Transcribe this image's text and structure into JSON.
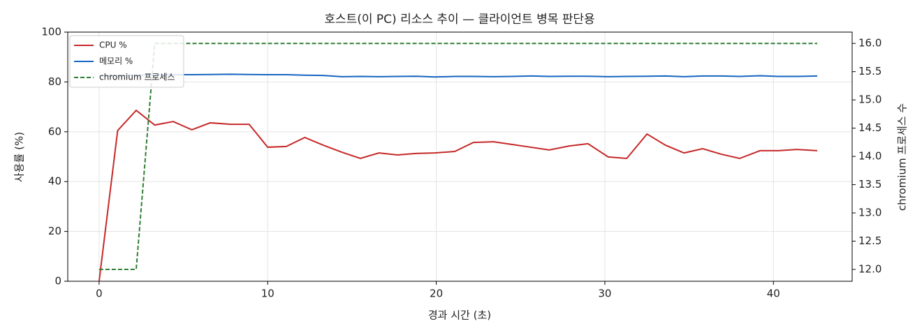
{
  "chart_data": {
    "type": "line",
    "title": "호스트(이 PC) 리소스 추이 — 클라이언트 병목 판단용",
    "xlabel": "경과 시간 (초)",
    "ylabel": "사용률 (%)",
    "y2label": "chromium 프로세스 수",
    "x": [
      0,
      1.1,
      2.2,
      3.3,
      4.4,
      5.5,
      6.6,
      7.8,
      8.9,
      10.0,
      11.1,
      12.2,
      13.3,
      14.4,
      15.5,
      16.6,
      17.7,
      18.8,
      19.9,
      21.1,
      22.2,
      23.4,
      24.5,
      25.6,
      26.7,
      27.9,
      29.0,
      30.2,
      31.3,
      32.5,
      33.6,
      34.7,
      35.8,
      36.9,
      38.0,
      39.2,
      40.3,
      41.4,
      42.6
    ],
    "series": [
      {
        "name": "CPU %",
        "color": "#c62828",
        "axis": "y",
        "linestyle": "solid",
        "values": [
          0,
          60.5,
          68.6,
          62.7,
          64.1,
          60.8,
          63.6,
          63.0,
          63.0,
          53.8,
          54.1,
          57.7,
          54.6,
          51.8,
          49.3,
          51.5,
          50.7,
          51.3,
          51.5,
          52.1,
          55.7,
          56.0,
          54.9,
          53.8,
          52.7,
          54.3,
          55.2,
          49.9,
          49.3,
          59.1,
          54.6,
          51.5,
          53.2,
          51.0,
          49.3,
          52.4,
          52.4,
          52.9,
          52.4
        ]
      },
      {
        "name": "메모리 %",
        "color": "#1565c0",
        "axis": "y",
        "linestyle": "solid",
        "values": [
          82.5,
          82.6,
          82.7,
          82.8,
          82.9,
          82.9,
          83.0,
          83.1,
          83.0,
          82.9,
          82.9,
          82.7,
          82.6,
          82.1,
          82.2,
          82.1,
          82.2,
          82.3,
          82.0,
          82.2,
          82.2,
          82.1,
          82.2,
          82.4,
          82.2,
          82.3,
          82.3,
          82.1,
          82.2,
          82.3,
          82.4,
          82.1,
          82.4,
          82.4,
          82.2,
          82.5,
          82.2,
          82.2,
          82.4
        ]
      },
      {
        "name": "chromium 프로세스",
        "color": "#2e7d32",
        "axis": "y2",
        "linestyle": "dashed",
        "values": [
          12,
          12,
          12,
          16,
          16,
          16,
          16,
          16,
          16,
          16,
          16,
          16,
          16,
          16,
          16,
          16,
          16,
          16,
          16,
          16,
          16,
          16,
          16,
          16,
          16,
          16,
          16,
          16,
          16,
          16,
          16,
          16,
          16,
          16,
          16,
          16,
          16,
          16,
          16
        ]
      }
    ],
    "xlim": [
      -1.86,
      44.67
    ],
    "xticks": [
      0,
      10,
      20,
      30,
      40
    ],
    "ylim": [
      0,
      100
    ],
    "yticks": [
      0,
      20,
      40,
      60,
      80,
      100
    ],
    "y2lim": [
      11.79,
      16.2
    ],
    "y2ticks": [
      {
        "value": 12,
        "label": "12.0"
      },
      12.5,
      {
        "value": 13,
        "label": "13.0"
      },
      13.5,
      {
        "value": 14,
        "label": "14.0"
      },
      14.5,
      {
        "value": 15,
        "label": "15.0"
      },
      15.5,
      {
        "value": 16,
        "label": "16.0"
      }
    ],
    "grid": true,
    "legend": "upper left"
  }
}
